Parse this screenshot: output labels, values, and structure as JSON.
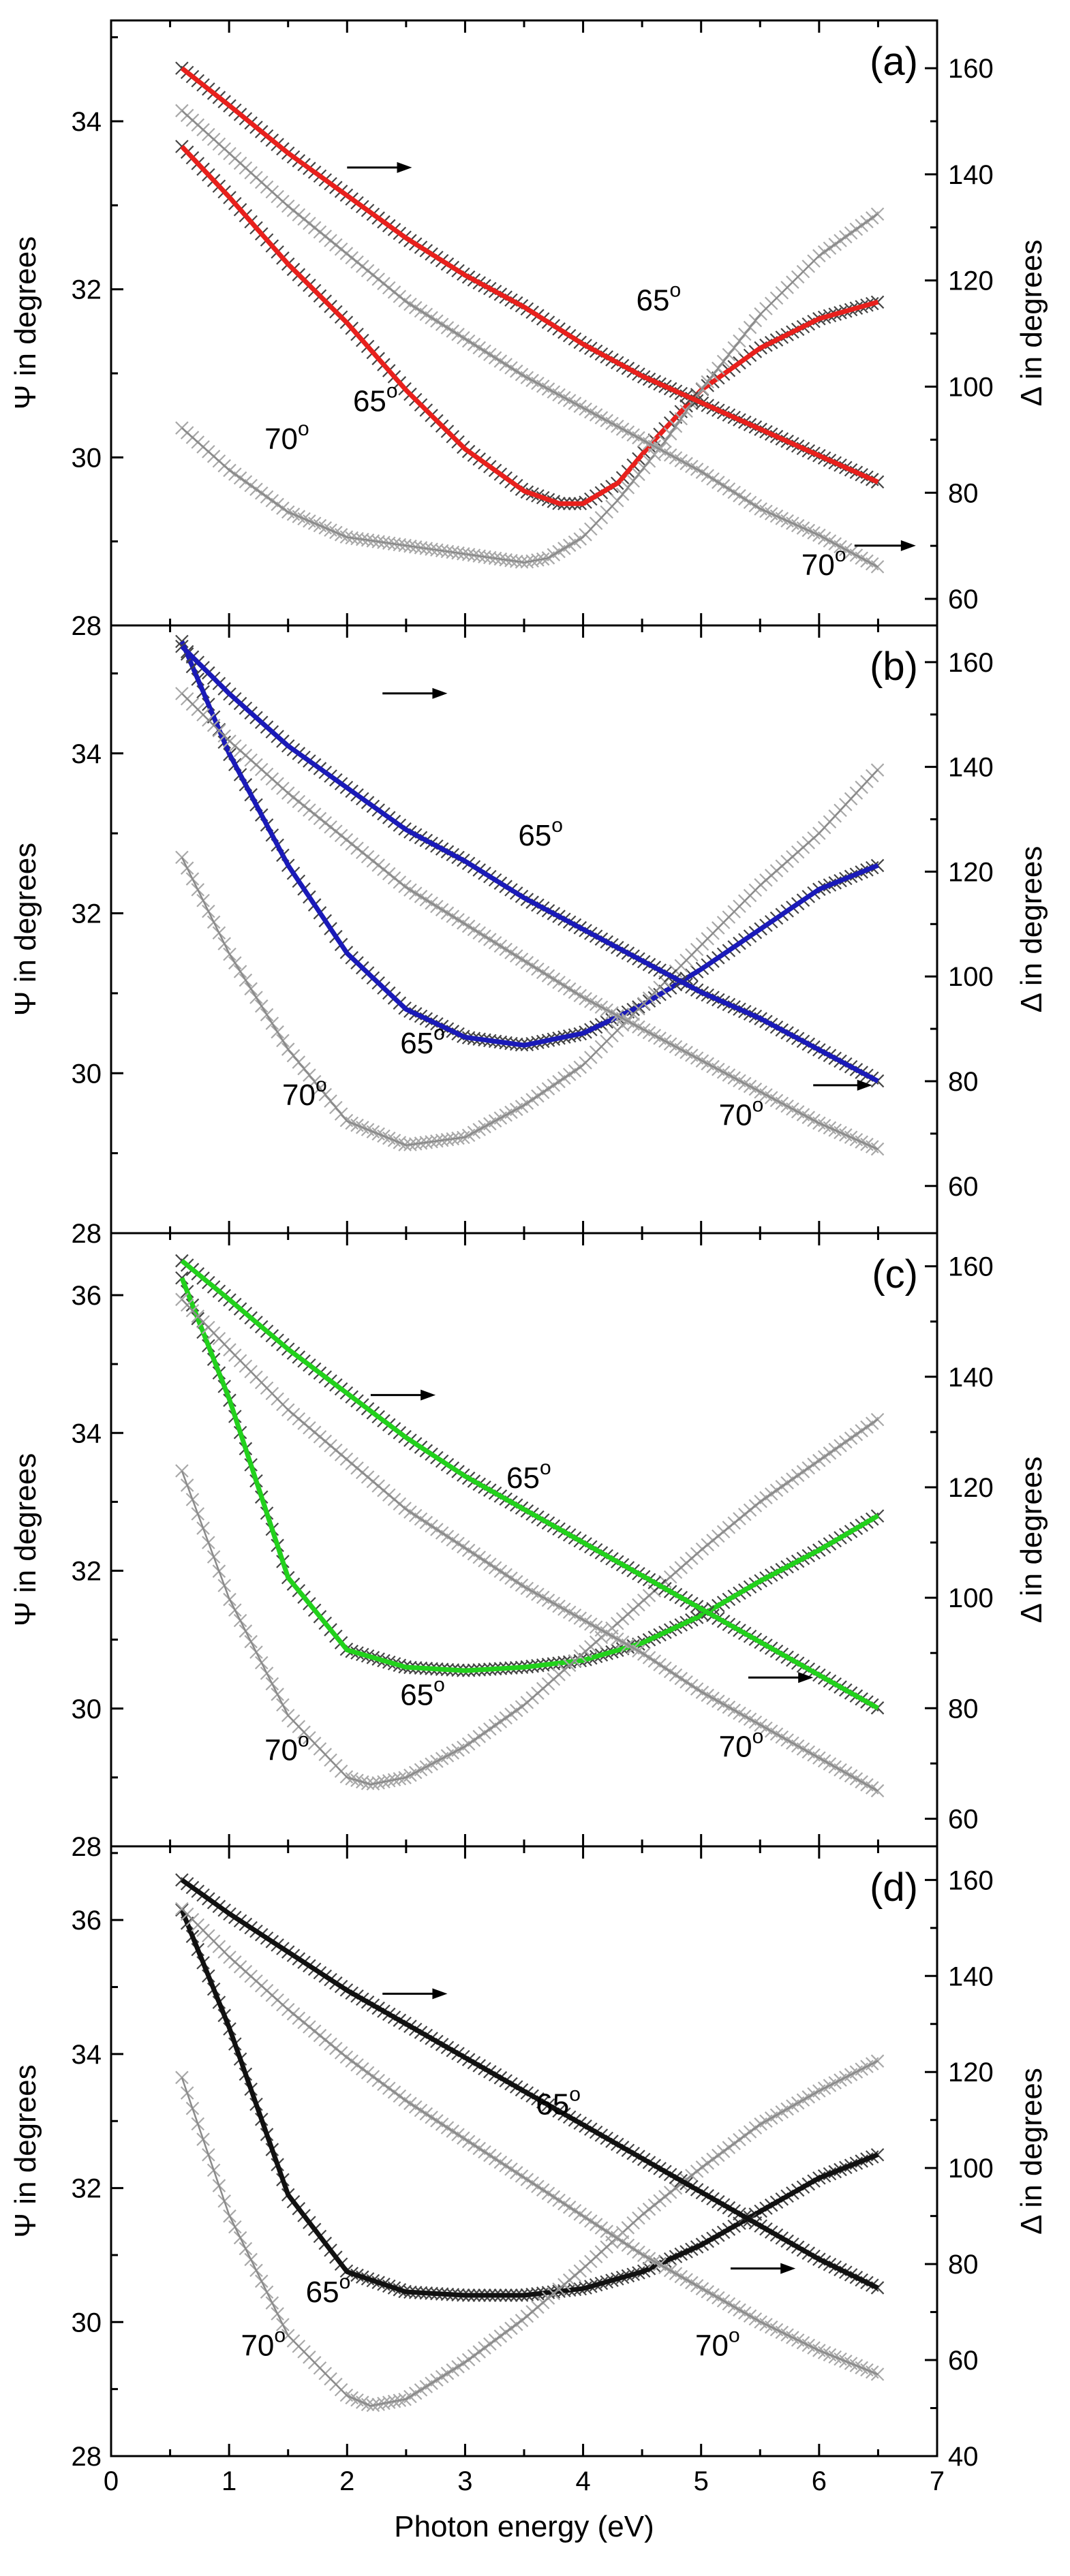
{
  "chart_data": [
    {
      "type": "line",
      "panel_label": "(a)",
      "xlim": [
        0,
        7
      ],
      "y_left": {
        "label": "Ψ in degrees",
        "lim": [
          28,
          35.2
        ],
        "ticks": [
          28,
          30,
          32,
          34
        ]
      },
      "y_right": {
        "label": "Δ in degrees",
        "lim": [
          55,
          169
        ],
        "ticks": [
          60,
          80,
          100,
          120,
          140,
          160
        ]
      },
      "fit_color": "#e8201c",
      "series": [
        {
          "axis": "psi",
          "angle": "65°",
          "role": "fit",
          "x": [
            0.6,
            1.0,
            1.5,
            2.0,
            2.5,
            3.0,
            3.5,
            3.8,
            4.0,
            4.3,
            4.6,
            5.0,
            5.5,
            6.0,
            6.5
          ],
          "y": [
            33.7,
            33.1,
            32.3,
            31.6,
            30.8,
            30.1,
            29.6,
            29.45,
            29.45,
            29.7,
            30.2,
            30.8,
            31.3,
            31.65,
            31.85
          ]
        },
        {
          "axis": "psi",
          "angle": "70°",
          "role": "data",
          "x": [
            0.6,
            1.0,
            1.5,
            2.0,
            2.5,
            3.0,
            3.5,
            3.7,
            4.0,
            4.3,
            4.7,
            5.0,
            5.5,
            6.0,
            6.5
          ],
          "y": [
            30.35,
            29.85,
            29.35,
            29.05,
            28.95,
            28.85,
            28.75,
            28.8,
            29.05,
            29.5,
            30.2,
            30.8,
            31.7,
            32.4,
            32.9
          ]
        },
        {
          "axis": "delta",
          "angle": "65°",
          "role": "fit",
          "x": [
            0.6,
            1.0,
            1.5,
            2.0,
            2.5,
            3.0,
            3.5,
            4.0,
            4.5,
            5.0,
            5.5,
            6.0,
            6.5
          ],
          "y": [
            160,
            153,
            144,
            136,
            128,
            121,
            115,
            108,
            102,
            97,
            92,
            87,
            82
          ]
        },
        {
          "axis": "delta",
          "angle": "70°",
          "role": "data",
          "x": [
            0.6,
            1.0,
            1.5,
            2.0,
            2.5,
            3.0,
            3.5,
            4.0,
            4.5,
            5.0,
            5.5,
            6.0,
            6.5
          ],
          "y": [
            152,
            144,
            134,
            125,
            116,
            109,
            102,
            96,
            90,
            84,
            77,
            72,
            66
          ]
        }
      ],
      "annotations": [
        {
          "text": "65",
          "sup": "o",
          "x": 4.45,
          "y": 31.75
        },
        {
          "text": "65",
          "sup": "o",
          "x": 2.05,
          "y": 30.55
        },
        {
          "text": "70",
          "sup": "o",
          "x": 1.3,
          "y": 30.1
        },
        {
          "text": "70",
          "sup": "o",
          "x": 5.85,
          "y": 28.6
        }
      ],
      "arrows": [
        {
          "x1": 2.0,
          "x2": 2.55,
          "y": 33.45
        },
        {
          "x1": 6.3,
          "x2": 6.82,
          "y": 28.95
        }
      ]
    },
    {
      "type": "line",
      "panel_label": "(b)",
      "xlim": [
        0,
        7
      ],
      "y_left": {
        "label": "Ψ in degrees",
        "lim": [
          28,
          35.6
        ],
        "ticks": [
          28,
          30,
          32,
          34
        ]
      },
      "y_right": {
        "label": "Δ in degrees",
        "lim": [
          51,
          167
        ],
        "ticks": [
          60,
          80,
          100,
          120,
          140,
          160
        ]
      },
      "fit_color": "#1a1ab8",
      "series": [
        {
          "axis": "psi",
          "angle": "65°",
          "role": "fit",
          "x": [
            0.6,
            1.0,
            1.5,
            2.0,
            2.5,
            3.0,
            3.5,
            4.0,
            4.5,
            5.0,
            5.5,
            6.0,
            6.5
          ],
          "y": [
            35.4,
            34.0,
            32.6,
            31.5,
            30.8,
            30.45,
            30.35,
            30.5,
            30.85,
            31.3,
            31.8,
            32.3,
            32.6
          ]
        },
        {
          "axis": "psi",
          "angle": "70°",
          "role": "data",
          "x": [
            0.6,
            1.0,
            1.5,
            2.0,
            2.5,
            3.0,
            3.5,
            4.0,
            4.5,
            5.0,
            5.5,
            6.0,
            6.5
          ],
          "y": [
            32.7,
            31.5,
            30.3,
            29.4,
            29.1,
            29.2,
            29.6,
            30.1,
            30.85,
            31.6,
            32.35,
            33.0,
            33.8
          ]
        },
        {
          "axis": "delta",
          "angle": "65°",
          "role": "fit",
          "x": [
            0.6,
            1.0,
            1.5,
            2.0,
            2.5,
            3.0,
            3.5,
            4.0,
            4.5,
            5.0,
            5.5,
            6.0,
            6.5
          ],
          "y": [
            163,
            154,
            144,
            136,
            128,
            122,
            115,
            109,
            103,
            97,
            92,
            86,
            80
          ]
        },
        {
          "axis": "delta",
          "angle": "70°",
          "role": "data",
          "x": [
            0.6,
            1.0,
            1.5,
            2.0,
            2.5,
            3.0,
            3.5,
            4.0,
            4.5,
            5.0,
            5.5,
            6.0,
            6.5
          ],
          "y": [
            154,
            145,
            135,
            126,
            117,
            110,
            103,
            96,
            90,
            84,
            78,
            72,
            67
          ]
        }
      ],
      "annotations": [
        {
          "text": "65",
          "sup": "o",
          "x": 3.45,
          "y": 32.85
        },
        {
          "text": "65",
          "sup": "o",
          "x": 2.45,
          "y": 30.25
        },
        {
          "text": "70",
          "sup": "o",
          "x": 1.45,
          "y": 29.6
        },
        {
          "text": "70",
          "sup": "o",
          "x": 5.15,
          "y": 29.35
        }
      ],
      "arrows": [
        {
          "x1": 2.3,
          "x2": 2.85,
          "y": 34.75
        },
        {
          "x1": 5.95,
          "x2": 6.45,
          "y": 29.85
        }
      ]
    },
    {
      "type": "line",
      "panel_label": "(c)",
      "xlim": [
        0,
        7
      ],
      "y_left": {
        "label": "Ψ in degrees",
        "lim": [
          28,
          36.9
        ],
        "ticks": [
          28,
          30,
          32,
          34,
          36
        ]
      },
      "y_right": {
        "label": "Δ in degrees",
        "lim": [
          55,
          166
        ],
        "ticks": [
          60,
          80,
          100,
          120,
          140,
          160
        ]
      },
      "fit_color": "#22d11c",
      "series": [
        {
          "axis": "psi",
          "angle": "65°",
          "role": "fit",
          "x": [
            0.6,
            1.0,
            1.5,
            2.0,
            2.5,
            3.0,
            3.5,
            4.0,
            4.5,
            5.0,
            5.5,
            6.0,
            6.5
          ],
          "y": [
            36.25,
            34.5,
            31.9,
            30.85,
            30.6,
            30.55,
            30.6,
            30.7,
            30.95,
            31.35,
            31.85,
            32.3,
            32.8
          ]
        },
        {
          "axis": "psi",
          "angle": "70°",
          "role": "data",
          "x": [
            0.6,
            1.0,
            1.5,
            2.0,
            2.2,
            2.5,
            3.0,
            3.5,
            4.0,
            4.5,
            5.0,
            5.5,
            6.0,
            6.5
          ],
          "y": [
            33.45,
            31.6,
            29.9,
            29.0,
            28.9,
            29.0,
            29.45,
            30.05,
            30.8,
            31.55,
            32.3,
            33.0,
            33.6,
            34.2
          ]
        },
        {
          "axis": "delta",
          "angle": "65°",
          "role": "fit",
          "x": [
            0.6,
            1.0,
            1.5,
            2.0,
            2.5,
            3.0,
            3.5,
            4.0,
            4.5,
            5.0,
            5.5,
            6.0,
            6.5
          ],
          "y": [
            161,
            154,
            145,
            137,
            129,
            122,
            116,
            110,
            104,
            98,
            92,
            86,
            80
          ]
        },
        {
          "axis": "delta",
          "angle": "70°",
          "role": "data",
          "x": [
            0.6,
            1.0,
            1.5,
            2.0,
            2.5,
            3.0,
            3.5,
            4.0,
            4.5,
            5.0,
            5.5,
            6.0,
            6.5
          ],
          "y": [
            154,
            145,
            134,
            125,
            116,
            109,
            102,
            96,
            90,
            83,
            77,
            71,
            65
          ]
        }
      ],
      "annotations": [
        {
          "text": "65",
          "sup": "o",
          "x": 3.35,
          "y": 33.2
        },
        {
          "text": "65",
          "sup": "o",
          "x": 2.45,
          "y": 30.05
        },
        {
          "text": "70",
          "sup": "o",
          "x": 1.3,
          "y": 29.25
        },
        {
          "text": "70",
          "sup": "o",
          "x": 5.15,
          "y": 29.3
        }
      ],
      "arrows": [
        {
          "x1": 2.2,
          "x2": 2.75,
          "y": 34.55
        },
        {
          "x1": 5.4,
          "x2": 5.95,
          "y": 30.45
        }
      ]
    },
    {
      "type": "line",
      "panel_label": "(d)",
      "xlim": [
        0,
        7
      ],
      "xlabel": "Photon energy (eV)",
      "xticks": [
        0,
        1,
        2,
        3,
        4,
        5,
        6,
        7
      ],
      "y_left": {
        "label": "Ψ in degrees",
        "lim": [
          28,
          37.1
        ],
        "ticks": [
          28,
          30,
          32,
          34,
          36
        ]
      },
      "y_right": {
        "label": "Δ in degrees",
        "lim": [
          40,
          167
        ],
        "ticks": [
          40,
          60,
          80,
          100,
          120,
          140,
          160
        ]
      },
      "fit_color": "#111111",
      "series": [
        {
          "axis": "psi",
          "angle": "65°",
          "role": "fit",
          "x": [
            0.6,
            1.0,
            1.5,
            2.0,
            2.5,
            3.0,
            3.5,
            4.0,
            4.5,
            5.0,
            5.5,
            6.0,
            6.5
          ],
          "y": [
            36.15,
            34.4,
            31.9,
            30.75,
            30.45,
            30.4,
            30.4,
            30.5,
            30.75,
            31.15,
            31.65,
            32.15,
            32.5
          ]
        },
        {
          "axis": "psi",
          "angle": "70°",
          "role": "data",
          "x": [
            0.6,
            1.0,
            1.5,
            2.0,
            2.2,
            2.5,
            3.0,
            3.5,
            4.0,
            4.5,
            5.0,
            5.5,
            6.0,
            6.5
          ],
          "y": [
            33.65,
            31.6,
            29.8,
            28.9,
            28.75,
            28.85,
            29.4,
            30.05,
            30.8,
            31.6,
            32.3,
            32.95,
            33.45,
            33.9
          ]
        },
        {
          "axis": "delta",
          "angle": "65°",
          "role": "fit",
          "x": [
            0.6,
            1.0,
            1.5,
            2.0,
            2.5,
            3.0,
            3.5,
            4.0,
            4.5,
            5.0,
            5.5,
            6.0,
            6.5
          ],
          "y": [
            160,
            153,
            145,
            137,
            130,
            123,
            116,
            109,
            102,
            95,
            88,
            81,
            75
          ]
        },
        {
          "axis": "delta",
          "angle": "70°",
          "role": "data",
          "x": [
            0.6,
            1.0,
            1.5,
            2.0,
            2.5,
            3.0,
            3.5,
            4.0,
            4.5,
            5.0,
            5.5,
            6.0,
            6.5
          ],
          "y": [
            154,
            144,
            133,
            123,
            114,
            106,
            98,
            90,
            82,
            75,
            68,
            62,
            57
          ]
        }
      ],
      "annotations": [
        {
          "text": "65",
          "sup": "o",
          "x": 3.6,
          "y": 33.1
        },
        {
          "text": "65",
          "sup": "o",
          "x": 1.65,
          "y": 30.3
        },
        {
          "text": "70",
          "sup": "o",
          "x": 1.1,
          "y": 29.5
        },
        {
          "text": "70",
          "sup": "o",
          "x": 4.95,
          "y": 29.5
        }
      ],
      "arrows": [
        {
          "x1": 2.3,
          "x2": 2.85,
          "y": 34.9
        },
        {
          "x1": 5.25,
          "x2": 5.8,
          "y": 30.8
        }
      ]
    }
  ]
}
